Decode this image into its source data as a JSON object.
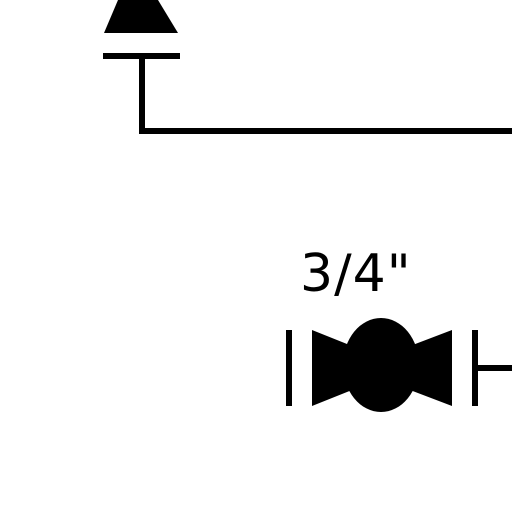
{
  "diagram": {
    "valve_label": "3/4\"",
    "symbols": [
      "trap-symbol",
      "ball-valve-symbol"
    ],
    "colors": {
      "line": "#000000",
      "background": "#ffffff"
    }
  }
}
